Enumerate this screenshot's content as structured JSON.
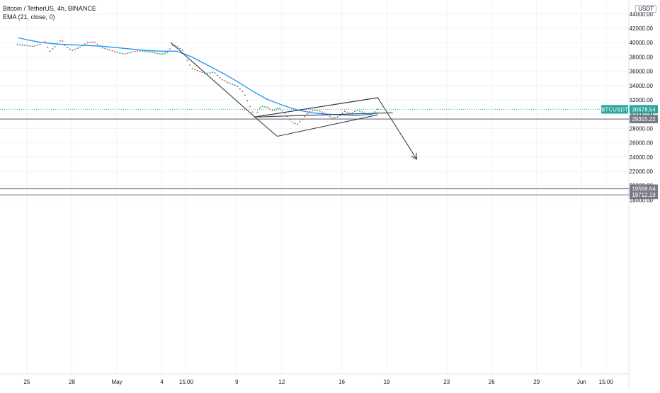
{
  "legend": {
    "title": "Bitcoin / TetherUS, 4h, BINANCE",
    "indicator": "EMA (21, close, 0)"
  },
  "price_scale_currency": "USDT",
  "badges": {
    "symbol": "BTCUSDT",
    "last_price": "30678.54",
    "hline_1": "29315.22",
    "hline_2": "19568.64",
    "hline_3": "18712.19"
  },
  "colors": {
    "up": "#26a69a",
    "down": "#ef5350",
    "ema": "#2196f3",
    "symbol_badge": "#26a69a",
    "hline": "#787b86",
    "drawing": "#131722"
  },
  "chart_data": {
    "type": "candlestick",
    "title": "Bitcoin / TetherUS, 4h, BINANCE",
    "series_name": "BTCUSDT",
    "indicator": "EMA (21, close, 0)",
    "last_price": 30678.54,
    "ylim": [
      18000,
      44000
    ],
    "y_ticks": [
      44000,
      42000,
      40000,
      38000,
      36000,
      34000,
      32000,
      30000,
      28000,
      26000,
      24000,
      22000,
      20000,
      18000
    ],
    "y_tick_labels": [
      "44000.00",
      "42000.00",
      "40000.00",
      "38000.00",
      "36000.00",
      "34000.00",
      "32000.00",
      "30000.00",
      "28000.00",
      "26000.00",
      "24000.00",
      "22000.00",
      "20000.00",
      "18000.00"
    ],
    "x_ticks": [
      "25",
      "28",
      "May",
      "4",
      "15:00",
      "9",
      "12",
      "16",
      "19",
      "23",
      "26",
      "29",
      "Jun",
      "15:00"
    ],
    "x_tick_days": [
      -6,
      -3,
      0,
      3,
      4.625,
      8,
      11,
      15,
      18,
      22,
      25,
      28,
      31,
      32.625
    ],
    "horizontal_lines": [
      29315.22,
      19568.64,
      18712.19
    ],
    "candle_start_day": -6.625,
    "candles_per_day": 6,
    "ohlc_fracs": [
      [
        0.0,
        0.05,
        0.0,
        0.035
      ],
      [
        0.035,
        0.05,
        0.01,
        0.02
      ],
      [
        0.02,
        0.04,
        0.005,
        0.03
      ],
      [
        0.03,
        0.06,
        0.015,
        0.045
      ],
      [
        0.045,
        0.065,
        0.02,
        0.04
      ],
      [
        0.04,
        0.075,
        0.03,
        0.065
      ],
      [
        0.065,
        0.08,
        0.04,
        0.055
      ],
      [
        0.055,
        0.07,
        0.045,
        0.06
      ],
      [
        0.06,
        0.095,
        0.05,
        0.08
      ],
      [
        0.08,
        0.09,
        0.06,
        0.07
      ],
      [
        0.07,
        0.085,
        0.05,
        0.06
      ],
      [
        0.06,
        0.07,
        0.035,
        0.045
      ],
      [
        0.045,
        0.055,
        0.02,
        0.03
      ],
      [
        0.03,
        0.04,
        0.01,
        0.035
      ],
      [
        0.035,
        0.05,
        0.02,
        0.025
      ],
      [
        0.025,
        0.06,
        0.02,
        0.05
      ],
      [
        0.05,
        0.09,
        0.04,
        0.075
      ],
      [
        0.075,
        0.08,
        0.055,
        0.06
      ],
      [
        0.06,
        0.07,
        0.03,
        0.04
      ],
      [
        0.04,
        0.055,
        0.025,
        0.045
      ],
      [
        0.045,
        0.07,
        0.04,
        0.065
      ],
      [
        0.065,
        0.09,
        0.05,
        0.07
      ],
      [
        0.07,
        0.075,
        0.05,
        0.06
      ],
      [
        0.06,
        0.08,
        0.055,
        0.07
      ],
      [
        0.07,
        0.09,
        0.06,
        0.085
      ],
      [
        0.085,
        0.1,
        0.065,
        0.075
      ],
      [
        0.075,
        0.09,
        0.07,
        0.085
      ],
      [
        0.085,
        0.11,
        0.075,
        0.095
      ],
      [
        0.095,
        0.1,
        0.08,
        0.09
      ],
      [
        0.09,
        0.105,
        0.075,
        0.085
      ],
      [
        0.085,
        0.09,
        0.06,
        0.07
      ],
      [
        0.07,
        0.085,
        0.055,
        0.06
      ],
      [
        0.06,
        0.075,
        0.05,
        0.07
      ],
      [
        0.07,
        0.08,
        0.055,
        0.065
      ],
      [
        0.065,
        0.075,
        0.05,
        0.055
      ],
      [
        0.055,
        0.07,
        0.045,
        0.06
      ],
      [
        0.06,
        0.08,
        0.05,
        0.075
      ],
      [
        0.075,
        0.09,
        0.06,
        0.065
      ],
      [
        0.065,
        0.07,
        0.045,
        0.055
      ],
      [
        0.055,
        0.065,
        0.035,
        0.04
      ],
      [
        0.04,
        0.06,
        0.035,
        0.05
      ],
      [
        0.05,
        0.065,
        0.04,
        0.055
      ],
      [
        0.055,
        0.075,
        0.05,
        0.07
      ],
      [
        0.07,
        0.08,
        0.055,
        0.06
      ],
      [
        0.06,
        0.07,
        0.04,
        0.045
      ],
      [
        0.045,
        0.06,
        0.03,
        0.05
      ],
      [
        0.05,
        0.07,
        0.045,
        0.065
      ],
      [
        0.065,
        0.08,
        0.05,
        0.055
      ],
      [
        0.055,
        0.065,
        0.04,
        0.05
      ],
      [
        0.05,
        0.06,
        0.03,
        0.035
      ],
      [
        0.035,
        0.05,
        0.025,
        0.045
      ],
      [
        0.045,
        0.06,
        0.03,
        0.04
      ],
      [
        0.04,
        0.055,
        0.03,
        0.05
      ],
      [
        0.05,
        0.07,
        0.045,
        0.06
      ],
      [
        0.06,
        0.075,
        0.05,
        0.065
      ],
      [
        0.065,
        0.07,
        0.045,
        0.05
      ],
      [
        0.05,
        0.06,
        0.04,
        0.055
      ],
      [
        0.055,
        0.065,
        0.045,
        0.06
      ],
      [
        0.06,
        0.08,
        0.055,
        0.075
      ],
      [
        0.075,
        0.09,
        0.065,
        0.08
      ],
      [
        0.08,
        0.1,
        0.07,
        0.095
      ],
      [
        0.095,
        0.11,
        0.08,
        0.085
      ],
      [
        0.085,
        0.095,
        0.07,
        0.08
      ],
      [
        0.08,
        0.09,
        0.06,
        0.065
      ],
      [
        0.065,
        0.075,
        0.05,
        0.07
      ],
      [
        0.07,
        0.08,
        0.06,
        0.075
      ],
      [
        0.075,
        0.085,
        0.065,
        0.07
      ],
      [
        0.07,
        0.08,
        0.06,
        0.065
      ],
      [
        0.065,
        0.07,
        0.05,
        0.055
      ],
      [
        0.055,
        0.065,
        0.04,
        0.06
      ],
      [
        0.06,
        0.075,
        0.055,
        0.07
      ],
      [
        0.07,
        0.08,
        0.06,
        0.065
      ],
      [
        0.065,
        0.075,
        0.05,
        0.06
      ],
      [
        0.06,
        0.07,
        0.045,
        0.05
      ],
      [
        0.05,
        0.06,
        0.04,
        0.055
      ],
      [
        0.055,
        0.065,
        0.045,
        0.06
      ],
      [
        0.06,
        0.075,
        0.05,
        0.07
      ],
      [
        0.07,
        0.09,
        0.065,
        0.085
      ],
      [
        0.085,
        0.11,
        0.08,
        0.1
      ],
      [
        0.1,
        0.115,
        0.09,
        0.105
      ],
      [
        0.105,
        0.11,
        0.085,
        0.09
      ],
      [
        0.09,
        0.1,
        0.075,
        0.095
      ],
      [
        0.095,
        0.105,
        0.085,
        0.09
      ],
      [
        0.09,
        0.095,
        0.075,
        0.08
      ]
    ],
    "price_points": [
      [
        -6.625,
        39800
      ],
      [
        -5.6,
        39500
      ],
      [
        -5.2,
        39700
      ],
      [
        -4.8,
        40200
      ],
      [
        -4.5,
        38800
      ],
      [
        -4.0,
        39700
      ],
      [
        -3.7,
        40500
      ],
      [
        -3.4,
        39500
      ],
      [
        -3.0,
        38900
      ],
      [
        -2.5,
        39300
      ],
      [
        -2.0,
        39900
      ],
      [
        -1.5,
        40100
      ],
      [
        -1.0,
        39300
      ],
      [
        -0.5,
        39000
      ],
      [
        0.0,
        38700
      ],
      [
        0.5,
        38400
      ],
      [
        1.0,
        38700
      ],
      [
        1.5,
        38900
      ],
      [
        2.0,
        38800
      ],
      [
        2.5,
        38600
      ],
      [
        3.0,
        38400
      ],
      [
        3.4,
        38600
      ],
      [
        3.7,
        39600
      ],
      [
        4.0,
        39500
      ],
      [
        4.4,
        38900
      ],
      [
        4.7,
        37600
      ],
      [
        5.0,
        36400
      ],
      [
        5.5,
        36000
      ],
      [
        6.0,
        35700
      ],
      [
        6.5,
        35800
      ],
      [
        7.0,
        34800
      ],
      [
        7.5,
        34400
      ],
      [
        8.0,
        34000
      ],
      [
        8.5,
        32900
      ],
      [
        8.9,
        30900
      ],
      [
        9.2,
        29600
      ],
      [
        9.6,
        31200
      ],
      [
        10.0,
        31000
      ],
      [
        10.4,
        30500
      ],
      [
        10.8,
        30900
      ],
      [
        11.2,
        30200
      ],
      [
        11.6,
        29000
      ],
      [
        12.0,
        28500
      ],
      [
        12.4,
        29300
      ],
      [
        12.8,
        30300
      ],
      [
        13.2,
        30600
      ],
      [
        13.6,
        30400
      ],
      [
        14.0,
        30000
      ],
      [
        14.4,
        29400
      ],
      [
        14.8,
        29700
      ],
      [
        15.2,
        30400
      ],
      [
        15.6,
        30100
      ],
      [
        16.0,
        30600
      ],
      [
        16.4,
        30300
      ],
      [
        16.8,
        29900
      ],
      [
        17.1,
        30100
      ],
      [
        17.4,
        30680
      ]
    ],
    "ema_points": [
      [
        -6.6,
        40700
      ],
      [
        -6,
        40400
      ],
      [
        -5,
        40000
      ],
      [
        -4,
        39800
      ],
      [
        -3,
        39700
      ],
      [
        -2,
        39600
      ],
      [
        -1,
        39500
      ],
      [
        0,
        39300
      ],
      [
        1,
        39100
      ],
      [
        2,
        38900
      ],
      [
        3,
        38800
      ],
      [
        4,
        38800
      ],
      [
        5,
        38000
      ],
      [
        6,
        36900
      ],
      [
        7,
        35800
      ],
      [
        8,
        34600
      ],
      [
        9,
        33300
      ],
      [
        10,
        32100
      ],
      [
        11,
        31300
      ],
      [
        12,
        30600
      ],
      [
        13,
        30200
      ],
      [
        14,
        30000
      ],
      [
        15,
        29900
      ],
      [
        16,
        29800
      ],
      [
        17,
        30000
      ],
      [
        17.4,
        30200
      ]
    ],
    "drawings": [
      {
        "points": [
          [
            3.6,
            40000
          ],
          [
            9.2,
            29600
          ],
          [
            17.4,
            32300
          ]
        ]
      },
      {
        "points": [
          [
            10.7,
            26900
          ],
          [
            17.4,
            29900
          ]
        ]
      },
      {
        "points": [
          [
            17.4,
            32300
          ],
          [
            20.0,
            23700
          ]
        ]
      }
    ],
    "arrow": {
      "from": [
        17.4,
        32300
      ],
      "to": [
        20.0,
        23700
      ]
    }
  }
}
